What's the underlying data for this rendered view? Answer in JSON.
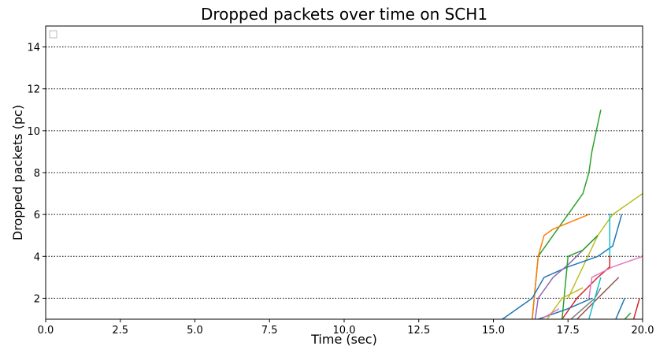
{
  "chart_data": {
    "type": "line",
    "title": "Dropped packets over time on SCH1",
    "xlabel": "Time (sec)",
    "ylabel": "Dropped packets (pc)",
    "xlim": [
      0,
      20
    ],
    "ylim": [
      1,
      15
    ],
    "xticks": [
      "0.0",
      "2.5",
      "5.0",
      "7.5",
      "10.0",
      "12.5",
      "15.0",
      "17.5",
      "20.0"
    ],
    "yticks": [
      "2",
      "4",
      "6",
      "8",
      "10",
      "12",
      "14"
    ],
    "grid": "horizontal dotted",
    "legend": "top-left (empty)",
    "series": [
      {
        "color": "#2ca02c",
        "x": [
          16.3,
          16.5,
          17.0,
          17.5,
          18.0,
          18.2,
          18.3,
          18.6
        ],
        "y": [
          1,
          4,
          5,
          6,
          7,
          8,
          9,
          11
        ]
      },
      {
        "color": "#ff7f0e",
        "x": [
          16.3,
          16.5,
          16.7,
          17.0,
          18.2
        ],
        "y": [
          1,
          4,
          5,
          5.3,
          6
        ]
      },
      {
        "color": "#bcbd22",
        "x": [
          17.5,
          18.0,
          18.5,
          19.0,
          19.5,
          20.0
        ],
        "y": [
          2,
          3.5,
          5,
          6,
          6.5,
          7
        ]
      },
      {
        "color": "#1f77b4",
        "x": [
          15.3,
          16.3,
          16.7,
          17.5,
          18.5,
          19.0,
          19.3
        ],
        "y": [
          1,
          2,
          3,
          3.5,
          4,
          4.5,
          6
        ]
      },
      {
        "color": "#17becf",
        "x": [
          18.9,
          18.9,
          18.95
        ],
        "y": [
          4,
          6,
          6
        ]
      },
      {
        "color": "#d62728",
        "x": [
          17.3,
          17.8,
          18.5,
          18.9,
          18.9
        ],
        "y": [
          1,
          2,
          3,
          3.5,
          4
        ]
      },
      {
        "color": "#e377c2",
        "x": [
          18.2,
          18.3,
          19.0,
          20.0
        ],
        "y": [
          2,
          3,
          3.5,
          4
        ]
      },
      {
        "color": "#9467bd",
        "x": [
          16.4,
          16.5,
          17.0,
          17.5,
          18.5
        ],
        "y": [
          1,
          2,
          3,
          3.6,
          5
        ]
      },
      {
        "color": "#8c564b",
        "x": [
          17.8,
          18.5,
          19.2
        ],
        "y": [
          1,
          2,
          3
        ]
      },
      {
        "color": "#7f7f7f",
        "x": [
          17.6,
          18.4,
          18.6
        ],
        "y": [
          1,
          2,
          2.5
        ]
      },
      {
        "color": "#2ca02c",
        "x": [
          17.3,
          17.5,
          18.0,
          18.5
        ],
        "y": [
          1,
          4,
          4.3,
          5
        ]
      },
      {
        "color": "#1f77b4",
        "x": [
          16.5,
          17.5,
          18.3
        ],
        "y": [
          1,
          1.5,
          2
        ]
      },
      {
        "color": "#17becf",
        "x": [
          18.2,
          18.6
        ],
        "y": [
          1,
          3
        ]
      },
      {
        "color": "#bcbd22",
        "x": [
          16.8,
          17.3,
          18.0
        ],
        "y": [
          1,
          2,
          2.5
        ]
      },
      {
        "color": "#1f77b4",
        "x": [
          19.1,
          19.4
        ],
        "y": [
          1,
          2
        ]
      },
      {
        "color": "#2ca02c",
        "x": [
          19.4,
          19.6
        ],
        "y": [
          1,
          1.3
        ]
      },
      {
        "color": "#d62728",
        "x": [
          19.7,
          19.9
        ],
        "y": [
          1,
          2
        ]
      },
      {
        "color": "#e377c2",
        "x": [
          16.6,
          17.2
        ],
        "y": [
          1,
          1.5
        ]
      }
    ]
  }
}
